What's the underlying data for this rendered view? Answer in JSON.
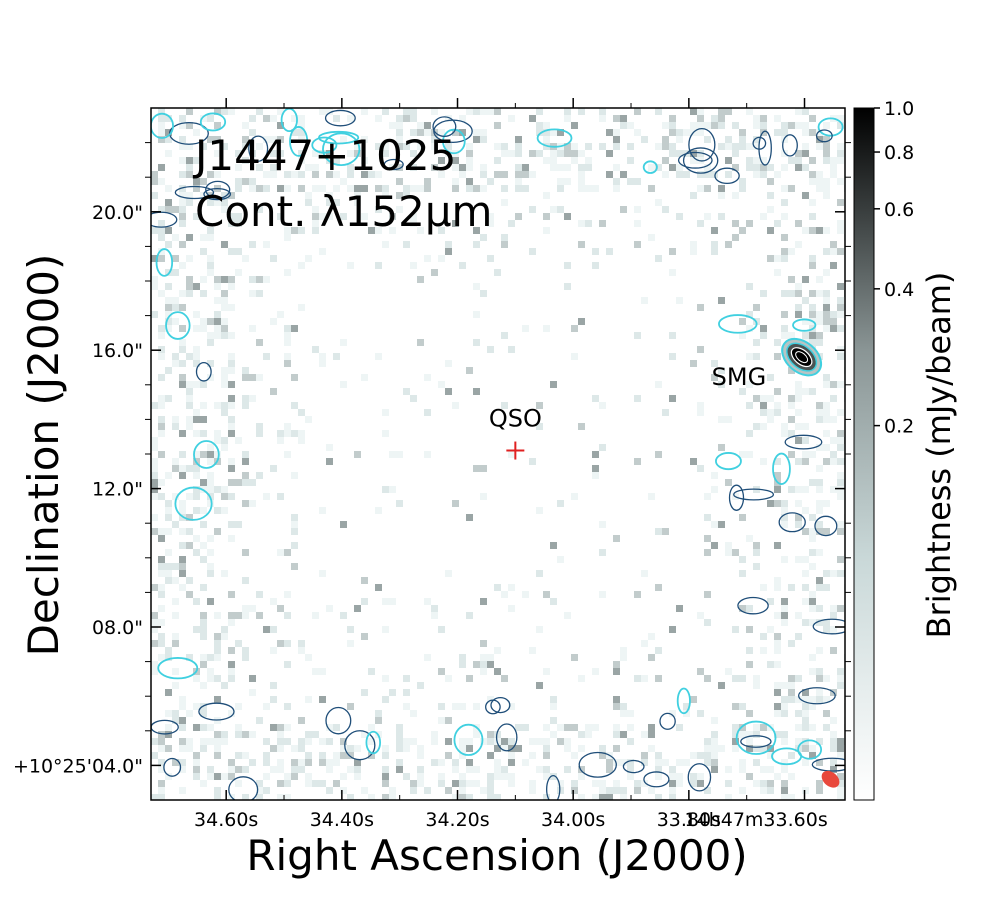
{
  "chart_data": {
    "type": "heatmap",
    "title_line1": "J1447+1025",
    "title_line2": "Cont. λ152μm",
    "xlabel": "Right Ascension (J2000)",
    "ylabel": "Declination (J2000)",
    "colorbar_label": "Brightness (mJy/beam)",
    "x_ticks": [
      {
        "label": "34.60s",
        "ra_sec": 34.6
      },
      {
        "label": "34.40s",
        "ra_sec": 34.4
      },
      {
        "label": "34.20s",
        "ra_sec": 34.2
      },
      {
        "label": "34.00s",
        "ra_sec": 34.0
      },
      {
        "label": "33.80s",
        "ra_sec": 33.8
      },
      {
        "label": "14h47m33.60s",
        "ra_sec": 33.6
      }
    ],
    "y_ticks": [
      {
        "label": "+10°25'04.0\"",
        "dec_arcsec": 4.0
      },
      {
        "label": "08.0\"",
        "dec_arcsec": 8.0
      },
      {
        "label": "12.0\"",
        "dec_arcsec": 12.0
      },
      {
        "label": "16.0\"",
        "dec_arcsec": 16.0
      },
      {
        "label": "20.0\"",
        "dec_arcsec": 20.0
      }
    ],
    "ra_range": [
      34.73,
      33.53
    ],
    "dec_range": [
      3.0,
      23.0
    ],
    "colorbar_ticks": [
      {
        "label": "1.0",
        "value": 1.0
      },
      {
        "label": "0.8",
        "value": 0.8
      },
      {
        "label": "0.6",
        "value": 0.6
      },
      {
        "label": "0.4",
        "value": 0.4
      },
      {
        "label": "0.2",
        "value": 0.2
      }
    ],
    "colorbar_range": [
      0.03,
      1.0
    ],
    "colorbar_scale": "log",
    "sources": [
      {
        "label": "QSO",
        "ra_sec": 34.1,
        "dec_arcsec": 13.1,
        "marker": "+",
        "color": "#e02020"
      },
      {
        "label": "SMG",
        "ra_sec": 33.605,
        "dec_arcsec": 15.8,
        "peak_mjy_beam": 1.0
      }
    ],
    "beam": {
      "ra_sec": 33.555,
      "dec_arcsec": 3.6,
      "color": "#e8483c"
    },
    "contour_colors": {
      "outer": "#1f4e79",
      "inner": "#40d0e0"
    }
  }
}
